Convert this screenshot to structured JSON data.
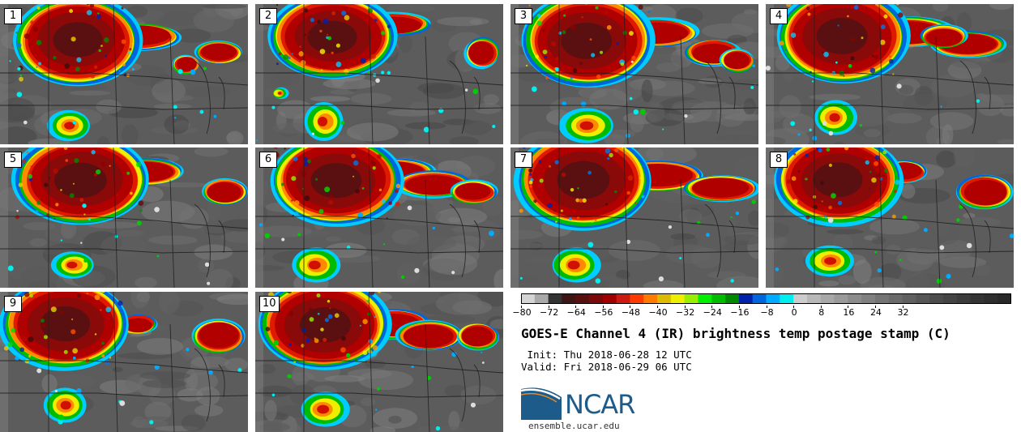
{
  "panels": [
    {
      "label": "1"
    },
    {
      "label": "2"
    },
    {
      "label": "3"
    },
    {
      "label": "4"
    },
    {
      "label": "5"
    },
    {
      "label": "6"
    },
    {
      "label": "7"
    },
    {
      "label": "8"
    },
    {
      "label": "9"
    },
    {
      "label": "10"
    }
  ],
  "colorbar": {
    "ticks": [
      "−80",
      "−72",
      "−64",
      "−56",
      "−48",
      "−40",
      "−32",
      "−24",
      "−16",
      "−8",
      "0",
      "8",
      "16",
      "24",
      "32"
    ],
    "colors": [
      "#d4d4d4",
      "#a9a9a9",
      "#333333",
      "#3d1515",
      "#5a0f0f",
      "#7a0a0a",
      "#a00000",
      "#cc1a10",
      "#ff3a00",
      "#ff7a00",
      "#ddbb00",
      "#eeee00",
      "#99ee00",
      "#00ee00",
      "#00bb00",
      "#008800",
      "#0022aa",
      "#0066dd",
      "#00aaff",
      "#00eeee",
      "#cccccc",
      "#b8b8b8",
      "#a8a8a8",
      "#9a9a9a",
      "#8c8c8c",
      "#808080",
      "#747474",
      "#6a6a6a",
      "#606060",
      "#565656",
      "#4c4c4c",
      "#444444",
      "#3c3c3c",
      "#343434",
      "#2e2e2e",
      "#282828"
    ]
  },
  "title": "GOES-E Channel 4 (IR) brightness temp postage stamp (C)",
  "init": " Init: Thu 2018-06-28 12 UTC",
  "valid": "Valid: Fri 2018-06-29 06 UTC",
  "logo": {
    "text": "NCAR",
    "site": "ensemble.ucar.edu",
    "color": "#1d5b8a"
  }
}
